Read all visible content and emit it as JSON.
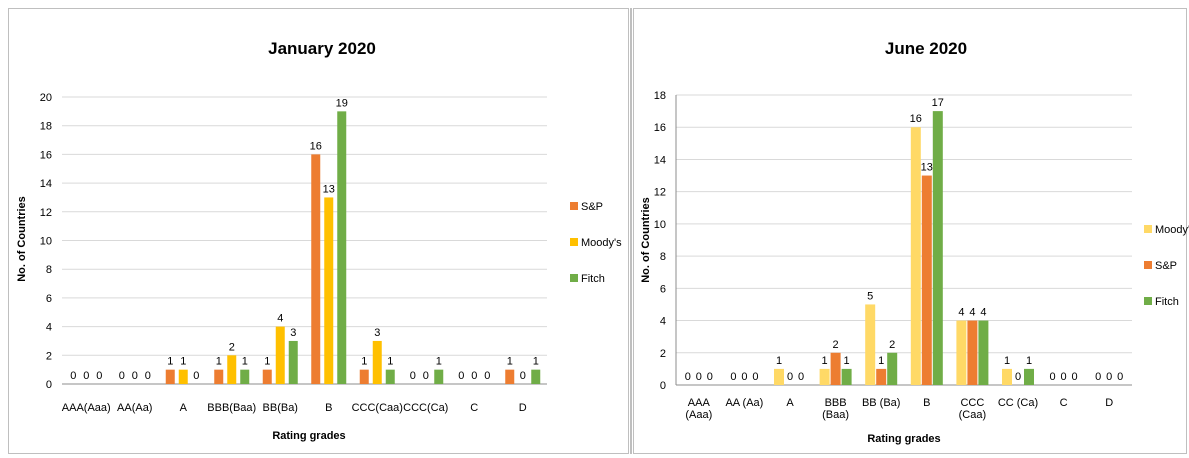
{
  "chart_data": [
    {
      "type": "bar",
      "title": "January 2020",
      "xlabel": "Rating grades",
      "ylabel": "No. of Countries",
      "ylim": [
        0,
        20
      ],
      "yticks": [
        "0",
        "2",
        "4",
        "6",
        "8",
        "10",
        "12",
        "14",
        "16",
        "18",
        "20"
      ],
      "categories": [
        "AAA(Aaa)",
        "AA(Aa)",
        "A",
        "BBB(Baa)",
        "BB(Ba)",
        "B",
        "CCC(Caa)",
        "CCC(Ca)",
        "C",
        "D"
      ],
      "series": [
        {
          "name": "S&P",
          "color": "#ed7d31",
          "values": [
            0,
            0,
            1,
            1,
            1,
            16,
            1,
            0,
            0,
            1
          ]
        },
        {
          "name": "Moody's",
          "color": "#ffc000",
          "values": [
            0,
            0,
            1,
            2,
            4,
            13,
            3,
            0,
            0,
            0
          ]
        },
        {
          "name": "Fitch",
          "color": "#70ad47",
          "values": [
            0,
            0,
            0,
            1,
            3,
            19,
            1,
            1,
            0,
            1
          ]
        }
      ],
      "grid": true,
      "legend_position": "right"
    },
    {
      "type": "bar",
      "title": "June 2020",
      "xlabel": "Rating grades",
      "ylabel": "No. of Countries",
      "ylim": [
        0,
        18
      ],
      "yticks": [
        "0",
        "2",
        "4",
        "6",
        "8",
        "10",
        "12",
        "14",
        "16",
        "18"
      ],
      "categories": [
        [
          "AAA",
          "(Aaa)"
        ],
        [
          "AA (Aa)"
        ],
        [
          "A"
        ],
        [
          "BBB",
          "(Baa)"
        ],
        [
          "BB (Ba)"
        ],
        [
          "B"
        ],
        [
          "CCC",
          "(Caa)"
        ],
        [
          "CC (Ca)"
        ],
        [
          "C"
        ],
        [
          "D"
        ]
      ],
      "series": [
        {
          "name": "Moody's",
          "color": "#ffd966",
          "values": [
            0,
            0,
            1,
            1,
            5,
            16,
            4,
            1,
            0,
            0
          ]
        },
        {
          "name": "S&P",
          "color": "#ed7d31",
          "values": [
            0,
            0,
            0,
            2,
            1,
            13,
            4,
            0,
            0,
            0
          ]
        },
        {
          "name": "Fitch",
          "color": "#70ad47",
          "values": [
            0,
            0,
            0,
            1,
            2,
            17,
            4,
            1,
            0,
            0
          ]
        }
      ],
      "grid": true,
      "legend_position": "right"
    }
  ]
}
